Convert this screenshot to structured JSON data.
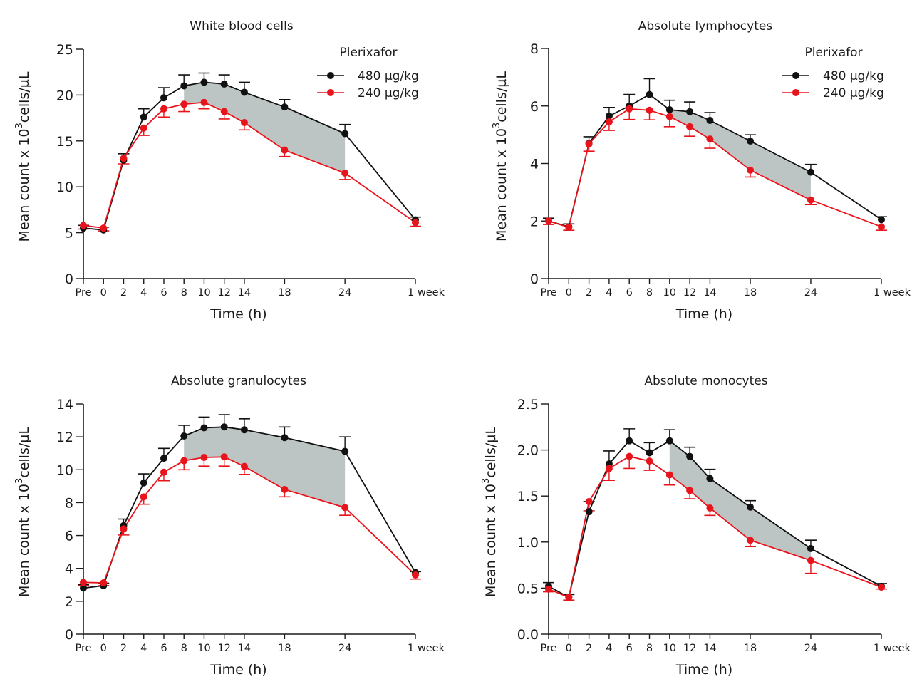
{
  "figure": {
    "legend_title": "Plerixafor",
    "colors": {
      "dose_480": "#111111",
      "dose_240": "#e8141c",
      "shade": "#bcc4c4",
      "axis": "#1a1a1a"
    }
  },
  "chart_data": [
    {
      "type": "line",
      "title": "White blood cells",
      "xlabel": "Time (h)",
      "ylabel": "Mean count x 10^3 cells/µL",
      "ylabel_parts": {
        "main": "Mean count x 10",
        "sup": "3",
        "tail": "cells/µL"
      },
      "categories": [
        "Pre",
        "0",
        "2",
        "4",
        "6",
        "8",
        "10",
        "12",
        "14",
        "18",
        "24",
        "1 week"
      ],
      "x_positions": [
        -2,
        0,
        2,
        4,
        6,
        8,
        10,
        12,
        14,
        18,
        24,
        31
      ],
      "xlim": [
        -2,
        31
      ],
      "ylim": [
        0,
        25
      ],
      "yticks": [
        0,
        5,
        10,
        15,
        20,
        25
      ],
      "ytick_labels": [
        "0",
        "5",
        "10",
        "15",
        "20",
        "25"
      ],
      "grid": false,
      "legend": "top-right",
      "shaded_between_series_from": "8",
      "shaded_between_series_to": "24",
      "series": [
        {
          "name": "480 µg/kg",
          "color": "#111111",
          "error_direction": "up",
          "values": [
            5.5,
            5.3,
            12.9,
            17.6,
            19.7,
            21.0,
            21.4,
            21.2,
            20.3,
            18.7,
            15.8,
            6.4
          ],
          "error": [
            0.3,
            0.3,
            0.7,
            0.9,
            1.1,
            1.2,
            1.0,
            1.0,
            1.1,
            0.8,
            1.0,
            0.3
          ]
        },
        {
          "name": "240 µg/kg",
          "color": "#e8141c",
          "error_direction": "down",
          "values": [
            5.8,
            5.5,
            13.1,
            16.4,
            18.5,
            19.0,
            19.2,
            18.2,
            17.0,
            14.0,
            11.5,
            6.1
          ],
          "error": [
            0.4,
            0.3,
            0.6,
            0.8,
            0.9,
            0.8,
            0.7,
            0.8,
            0.8,
            0.7,
            0.7,
            0.4
          ]
        }
      ]
    },
    {
      "type": "line",
      "title": "Absolute lymphocytes",
      "xlabel": "Time (h)",
      "ylabel": "Mean count x 10^3 cells/µL",
      "ylabel_parts": {
        "main": "Mean count x 10",
        "sup": "3",
        "tail": "cells/µL"
      },
      "categories": [
        "Pre",
        "0",
        "2",
        "4",
        "6",
        "8",
        "10",
        "12",
        "14",
        "18",
        "24",
        "1 week"
      ],
      "x_positions": [
        -2,
        0,
        2,
        4,
        6,
        8,
        10,
        12,
        14,
        18,
        24,
        31
      ],
      "xlim": [
        -2,
        31
      ],
      "ylim": [
        0,
        8
      ],
      "yticks": [
        0,
        2,
        4,
        6,
        8
      ],
      "ytick_labels": [
        "0",
        "2",
        "4",
        "6",
        "8"
      ],
      "grid": false,
      "legend": "top-right",
      "shaded_between_series_from": "10",
      "shaded_between_series_to": "24",
      "series": [
        {
          "name": "480 µg/kg",
          "color": "#111111",
          "error_direction": "up",
          "values": [
            2.0,
            1.8,
            4.7,
            5.65,
            6.0,
            6.4,
            5.87,
            5.8,
            5.5,
            4.78,
            3.7,
            2.05
          ],
          "error": [
            0.1,
            0.1,
            0.23,
            0.3,
            0.4,
            0.55,
            0.33,
            0.34,
            0.27,
            0.22,
            0.27,
            0.1
          ]
        },
        {
          "name": "240 µg/kg",
          "color": "#e8141c",
          "error_direction": "down",
          "values": [
            2.0,
            1.78,
            4.68,
            5.45,
            5.9,
            5.85,
            5.63,
            5.28,
            4.85,
            3.77,
            2.73,
            1.8
          ],
          "error": [
            0.12,
            0.1,
            0.25,
            0.3,
            0.37,
            0.33,
            0.35,
            0.33,
            0.32,
            0.24,
            0.16,
            0.12
          ]
        }
      ]
    },
    {
      "type": "line",
      "title": "Absolute granulocytes",
      "xlabel": "Time (h)",
      "ylabel": "Mean count x 10^3 cells/µL",
      "ylabel_parts": {
        "main": "Mean count x 10",
        "sup": "3",
        "tail": "cells/µL"
      },
      "categories": [
        "Pre",
        "0",
        "2",
        "4",
        "6",
        "8",
        "10",
        "12",
        "14",
        "18",
        "24",
        "1 week"
      ],
      "x_positions": [
        -2,
        0,
        2,
        4,
        6,
        8,
        10,
        12,
        14,
        18,
        24,
        31
      ],
      "xlim": [
        -2,
        31
      ],
      "ylim": [
        0,
        14
      ],
      "yticks": [
        0,
        2,
        4,
        6,
        8,
        10,
        12,
        14
      ],
      "ytick_labels": [
        "0",
        "2",
        "4",
        "6",
        "8",
        "10",
        "12",
        "14"
      ],
      "grid": false,
      "legend": "none",
      "shaded_between_series_from": "8",
      "shaded_between_series_to": "24",
      "series": [
        {
          "name": "480 µg/kg",
          "color": "#111111",
          "error_direction": "up",
          "values": [
            2.8,
            2.95,
            6.6,
            9.2,
            10.7,
            12.05,
            12.55,
            12.6,
            12.43,
            11.95,
            11.12,
            3.75
          ],
          "error": [
            0.2,
            0.15,
            0.4,
            0.55,
            0.6,
            0.65,
            0.65,
            0.75,
            0.67,
            0.65,
            0.88,
            0.05
          ]
        },
        {
          "name": "240 µg/kg",
          "color": "#e8141c",
          "error_direction": "down",
          "values": [
            3.15,
            3.12,
            6.4,
            8.35,
            9.85,
            10.55,
            10.75,
            10.78,
            10.2,
            8.8,
            7.7,
            3.6
          ],
          "error": [
            0.2,
            0.17,
            0.37,
            0.45,
            0.52,
            0.55,
            0.53,
            0.56,
            0.48,
            0.45,
            0.47,
            0.25
          ]
        }
      ]
    },
    {
      "type": "line",
      "title": "Absolute monocytes",
      "xlabel": "Time (h)",
      "ylabel": "Mean count x 10^3 cells/µL",
      "ylabel_parts": {
        "main": "Mean count x 10",
        "sup": "3",
        "tail": "cells/µL"
      },
      "categories": [
        "Pre",
        "0",
        "2",
        "4",
        "6",
        "8",
        "10",
        "12",
        "14",
        "18",
        "24",
        "1 week"
      ],
      "x_positions": [
        -2,
        0,
        2,
        4,
        6,
        8,
        10,
        12,
        14,
        18,
        24,
        31
      ],
      "xlim": [
        -2,
        31
      ],
      "ylim": [
        0,
        2.5
      ],
      "yticks": [
        0,
        0.5,
        1.0,
        1.5,
        2.0,
        2.5
      ],
      "ytick_labels": [
        "0.0",
        "0.5",
        "1.0",
        "1.5",
        "2.0",
        "2.5"
      ],
      "grid": false,
      "legend": "none",
      "shaded_between_series_from": "10",
      "shaded_between_series_to": "24",
      "series": [
        {
          "name": "480 µg/kg",
          "color": "#111111",
          "error_direction": "up",
          "values": [
            0.52,
            0.4,
            1.33,
            1.85,
            2.1,
            1.97,
            2.1,
            1.93,
            1.69,
            1.38,
            0.93,
            0.52
          ],
          "error": [
            0.04,
            0.03,
            0.11,
            0.14,
            0.13,
            0.11,
            0.12,
            0.1,
            0.1,
            0.07,
            0.09,
            0.03
          ]
        },
        {
          "name": "240 µg/kg",
          "color": "#e8141c",
          "error_direction": "down",
          "values": [
            0.49,
            0.4,
            1.44,
            1.8,
            1.93,
            1.88,
            1.73,
            1.56,
            1.37,
            1.02,
            0.8,
            0.51
          ],
          "error": [
            0.03,
            0.03,
            0.1,
            0.13,
            0.13,
            0.1,
            0.11,
            0.09,
            0.08,
            0.07,
            0.14,
            0.02
          ]
        }
      ]
    }
  ]
}
